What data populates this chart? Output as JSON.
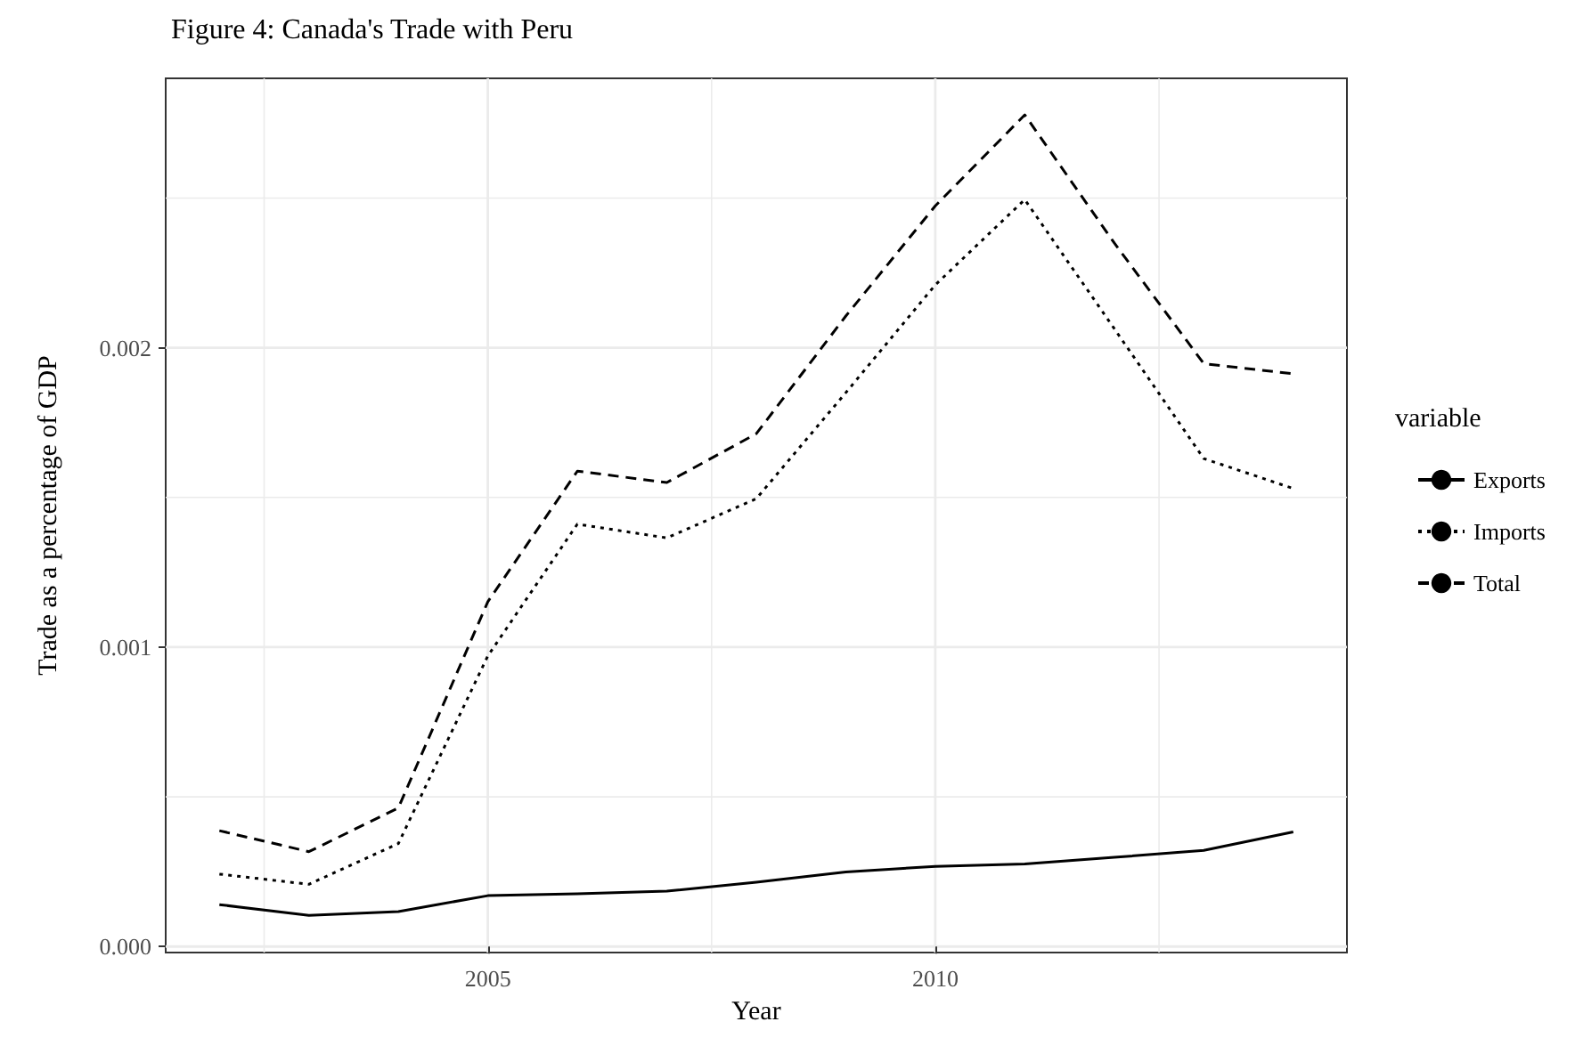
{
  "chart_data": {
    "type": "line",
    "title": "Figure 4: Canada's Trade with Peru",
    "xlabel": "Year",
    "ylabel": "Trade as a percentage of GDP",
    "legend_title": "variable",
    "x": [
      2002,
      2003,
      2004,
      2005,
      2006,
      2007,
      2008,
      2009,
      2010,
      2011,
      2012,
      2013,
      2014
    ],
    "series": [
      {
        "name": "Exports",
        "color": "#000000",
        "line_style": "solid",
        "values": [
          0.00014,
          0.000104,
          0.000117,
          0.00017,
          0.000176,
          0.000185,
          0.000215,
          0.000249,
          0.000268,
          0.000276,
          0.000298,
          0.000321,
          0.000383
        ]
      },
      {
        "name": "Imports",
        "color": "#000000",
        "line_style": "dotted",
        "values": [
          0.000242,
          0.000208,
          0.000344,
          0.000971,
          0.001411,
          0.001365,
          0.001496,
          0.00185,
          0.00221,
          0.002495,
          0.002064,
          0.00163,
          0.00153
        ]
      },
      {
        "name": "Total",
        "color": "#000000",
        "line_style": "dashed",
        "values": [
          0.000387,
          0.000317,
          0.000463,
          0.001152,
          0.001588,
          0.00155,
          0.001713,
          0.002106,
          0.002474,
          0.002778,
          0.00235,
          0.001947,
          0.001913
        ]
      }
    ],
    "xlim": [
      2001.4,
      2014.6
    ],
    "ylim": [
      -2e-05,
      0.0029
    ],
    "xticks": [
      {
        "value": 2002.5,
        "label": null
      },
      2005,
      {
        "value": 2007.5,
        "label": null
      },
      2010,
      {
        "value": 2012.5,
        "label": null
      }
    ],
    "yticks": [
      {
        "value": 0,
        "label": "0.000"
      },
      {
        "value": 0.0005,
        "label": null
      },
      {
        "value": 0.001,
        "label": "0.001"
      },
      {
        "value": 0.0015,
        "label": null
      },
      {
        "value": 0.002,
        "label": "0.002"
      },
      {
        "value": 0.0025,
        "label": null
      }
    ],
    "grid": true,
    "legend": "right",
    "marker": "none"
  }
}
